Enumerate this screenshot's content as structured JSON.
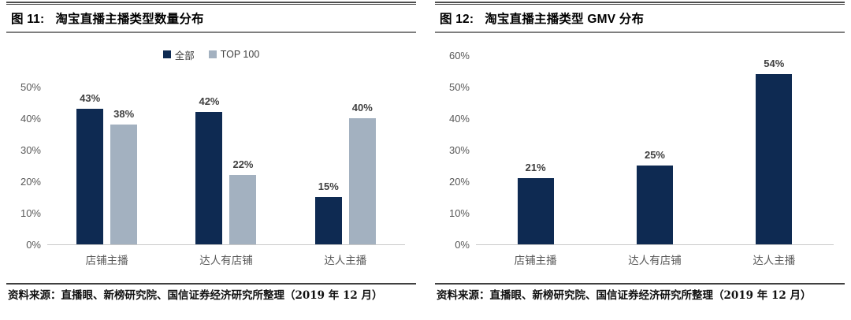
{
  "figures": [
    {
      "title": {
        "prefix": "图 11:",
        "text": "淘宝直播主播类型数量分布"
      },
      "source": "资料来源：直播眼、新榜研究院、国信证券经济研究所整理（2019 年 12 月）",
      "chart_data": {
        "type": "bar",
        "categories": [
          "店铺主播",
          "达人有店铺",
          "达人主播"
        ],
        "series": [
          {
            "name": "全部",
            "color": "#0e2a52",
            "values": [
              43,
              42,
              15
            ]
          },
          {
            "name": "TOP 100",
            "color": "#a3b1c0",
            "values": [
              38,
              22,
              40
            ]
          }
        ],
        "data_labels": [
          "43%",
          "42%",
          "15%",
          "38%",
          "22%",
          "40%"
        ],
        "ylim": [
          0,
          50
        ],
        "ytick_step": 10,
        "yticks": [
          "0%",
          "10%",
          "20%",
          "30%",
          "40%",
          "50%"
        ],
        "show_legend": true,
        "legend_position": "top",
        "grid": false
      }
    },
    {
      "title": {
        "prefix": "图 12:",
        "text": "淘宝直播主播类型 GMV 分布"
      },
      "source": "资料来源：直播眼、新榜研究院、国信证券经济研究所整理（2019 年 12 月）",
      "chart_data": {
        "type": "bar",
        "categories": [
          "店铺主播",
          "达人有店铺",
          "达人主播"
        ],
        "series": [
          {
            "color": "#0e2a52",
            "values": [
              21,
              25,
              54
            ]
          }
        ],
        "data_labels": [
          "21%",
          "25%",
          "54%"
        ],
        "ylim": [
          0,
          60
        ],
        "ytick_step": 10,
        "yticks": [
          "0%",
          "10%",
          "20%",
          "30%",
          "40%",
          "50%",
          "60%"
        ],
        "show_legend": false,
        "grid": false
      }
    }
  ],
  "style": {
    "navy": "#0e2a52",
    "gray_blue": "#a3b1c0",
    "axis_line": "#c9c9c9",
    "tick_text": "#595959",
    "label_text": "#404040"
  }
}
